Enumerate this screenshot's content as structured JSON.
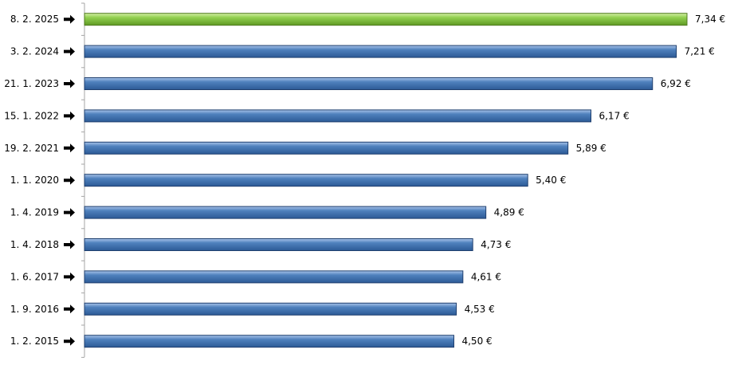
{
  "chart_data": {
    "type": "bar",
    "orientation": "horizontal",
    "categories": [
      "8. 2. 2025",
      "3. 2. 2024",
      "21. 1. 2023",
      "15. 1. 2022",
      "19. 2. 2021",
      "1. 1. 2020",
      "1. 4. 2019",
      "1. 4. 2018",
      "1. 6. 2017",
      "1. 9. 2016",
      "1. 2. 2015"
    ],
    "values": [
      7.34,
      7.21,
      6.92,
      6.17,
      5.89,
      5.4,
      4.89,
      4.73,
      4.61,
      4.53,
      4.5
    ],
    "value_labels": [
      "7,34 €",
      "7,21 €",
      "6,92 €",
      "6,17 €",
      "5,89 €",
      "5,40 €",
      "4,89 €",
      "4,73 €",
      "4,61 €",
      "4,53 €",
      "4,50 €"
    ],
    "xlim": [
      0,
      7.34
    ],
    "grid": false,
    "title": "",
    "xlabel": "",
    "ylabel": "",
    "colors": {
      "highlight": "#92d050",
      "highlight_edge": "#4f7a1f",
      "default": "#4f81bd",
      "default_edge": "#1f3f6e"
    },
    "highlight_index": 0,
    "label_icon": "right-arrow-icon"
  }
}
